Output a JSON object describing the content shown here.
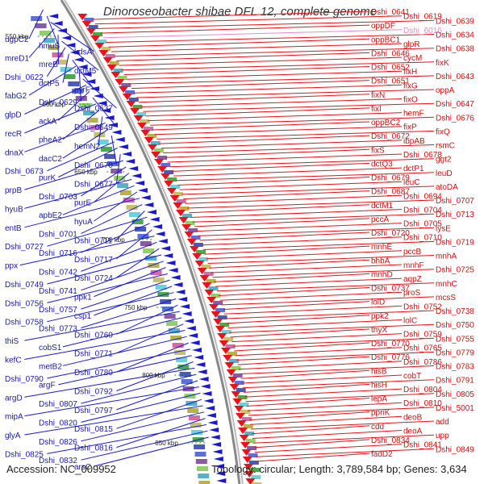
{
  "title": "Dinoroseobacter shibae DFL 12, complete genome",
  "footer": {
    "accession_label": "Accession:",
    "accession": "NC_009952",
    "topology_label": "Topology:",
    "topology": "circular",
    "length_label": "Length:",
    "length": "3,789,584 bp",
    "genes_label": "Genes:",
    "genes": "3,634"
  },
  "colors": {
    "forward": "#e8141b",
    "reverse": "#1a1acc",
    "highlight": "#e38ad0",
    "backbone": "#888888",
    "ticks": "#2e8b2e"
  },
  "scale_marks": [
    "550 kbp",
    "600 kbp",
    "650 kbp",
    "700 kbp",
    "750 kbp",
    "800 kbp",
    "850 kbp"
  ],
  "left_labels": [
    "ugpC2",
    "hmuS",
    "kdsA",
    "mreD1",
    "mreB",
    "dctM5",
    "Dshi_0622",
    "dctP5",
    "pyrF",
    "fabG2",
    "Dshi_0629",
    "Dshi_0637",
    "glpD",
    "ackA",
    "Dshi_0649",
    "recR",
    "pheA2",
    "hemN2",
    "dnaX",
    "dacC2",
    "Dshi_0670",
    "Dshi_0673",
    "purK",
    "Dshi_0677",
    "prpB",
    "Dshi_0703",
    "purE",
    "hyuB",
    "apbE2",
    "hyuA",
    "entB",
    "Dshi_0701",
    "Dshi_0711",
    "Dshi_0727",
    "Dshi_0716",
    "Dshi_0717",
    "ppx",
    "Dshi_0742",
    "Dshi_0724",
    "Dshi_0749",
    "Dshi_0741",
    "ppk1",
    "Dshi_0756",
    "Dshi_0757",
    "csp1",
    "Dshi_0758",
    "Dshi_0773",
    "Dshi_0760",
    "thiS",
    "cobS1",
    "Dshi_0771",
    "kefC",
    "metB2",
    "Dshi_0780",
    "Dshi_0790",
    "argF",
    "Dshi_0792",
    "argD",
    "Dshi_0807",
    "Dshi_0797",
    "mipA",
    "Dshi_0820",
    "Dshi_0815",
    "glyA",
    "Dshi_0826",
    "Dshi_0816",
    "Dshi_0825",
    "Dshi_0832",
    "arsC"
  ],
  "right_labels": [
    "Dshi_0641",
    "Dshi_0619",
    "Dshi_0639",
    "oppDF",
    "Dshi_6016",
    "Dshi_0634",
    "oppBC1",
    "glpR",
    "Dshi_0638",
    "Dshi_0646",
    "cycM",
    "fixK",
    "Dshi_0652",
    "fixH",
    "Dshi_0643",
    "Dshi_0651",
    "fixG",
    "oppA",
    "fixN",
    "fixO",
    "Dshi_0647",
    "fixI",
    "hemF",
    "Dshi_0676",
    "oppBC2",
    "fixP",
    "fixQ",
    "Dshi_0672",
    "ibpAB",
    "rsmC",
    "fixS",
    "Dshi_0678",
    "ggt2",
    "dctQ3",
    "dctP1",
    "leuD",
    "Dshi_0679",
    "leuC",
    "atoDA",
    "Dshi_0687",
    "Dshi_0694",
    "Dshi_0707",
    "dctM1",
    "Dshi_0704",
    "Dshi_0713",
    "pccA",
    "Dshi_0705",
    "lysE",
    "Dshi_0720",
    "Dshi_0710",
    "Dshi_0719",
    "mnhE",
    "pccB",
    "mnhA",
    "bhbA",
    "mnhF",
    "Dshi_0725",
    "mnhD",
    "aqpZ",
    "mnhC",
    "Dshi_0737",
    "proS",
    "mcsS",
    "lolD",
    "Dshi_0752",
    "Dshi_0738",
    "ppk2",
    "lolC",
    "Dshi_0750",
    "thyX",
    "Dshi_0759",
    "Dshi_0755",
    "Dshi_0770",
    "Dshi_0765",
    "Dshi_0779",
    "Dshi_0776",
    "Dshi_0786",
    "Dshi_0783",
    "hisB",
    "cobT",
    "Dshi_0791",
    "hisH",
    "Dshi_0804",
    "Dshi_0805",
    "lepA",
    "Dshi_0810",
    "Dshi_5001",
    "ppnK",
    "deoB",
    "add",
    "cdd",
    "deoA",
    "upp",
    "Dshi_0834",
    "Dshi_0841",
    "Dshi_0849",
    "fadD2"
  ]
}
